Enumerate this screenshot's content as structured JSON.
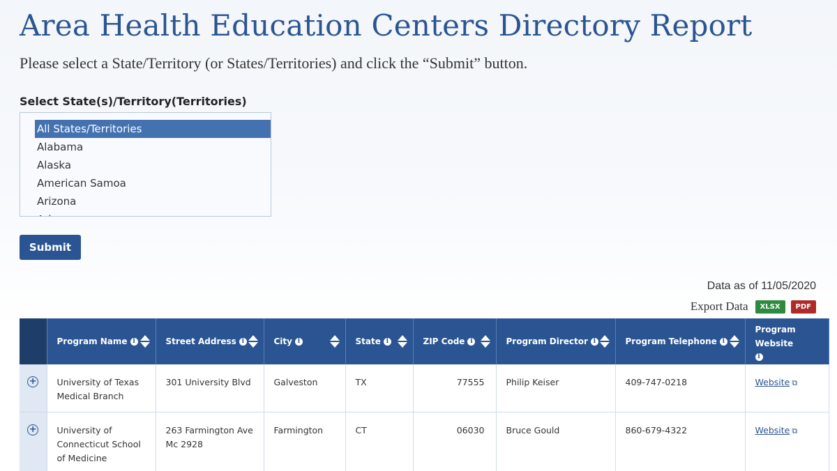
{
  "page": {
    "title": "Area Health Education Centers Directory Report",
    "instructions": "Please select a State/Territory (or States/Territories) and click the “Submit” button."
  },
  "state_select": {
    "label": "Select State(s)/Territory(Territories)",
    "options": [
      "All States/Territories",
      "Alabama",
      "Alaska",
      "American Samoa",
      "Arizona",
      "Arkansas"
    ],
    "selected": "All States/Territories"
  },
  "submit_label": "Submit",
  "data_as_of": "Data as of 11/05/2020",
  "export": {
    "label": "Export Data",
    "xlsx": "XLSX",
    "pdf": "PDF"
  },
  "table": {
    "headers": [
      "Program Name",
      "Street Address",
      "City",
      "State",
      "ZIP Code",
      "Program Director",
      "Program Telephone",
      "Program Website"
    ],
    "rows": [
      {
        "program_name": "University  of Texas Medical Branch",
        "street_address": "301 University Blvd",
        "city": "Galveston",
        "state": "TX",
        "zip": "77555",
        "director": "Philip Keiser",
        "telephone": "409-747-0218",
        "website": "Website"
      },
      {
        "program_name": "University of Connecticut  School of Medicine",
        "street_address": "263 Farmington Ave Mc 2928",
        "city": "Farmington",
        "state": "CT",
        "zip": "06030",
        "director": "Bruce Gould",
        "telephone": "860-679-4322",
        "website": "Website"
      }
    ]
  },
  "colors": {
    "primary": "#2a5592",
    "header_dark": "#1e3d68",
    "xlsx_badge": "#2d8a3e",
    "pdf_badge": "#b02a2a"
  }
}
